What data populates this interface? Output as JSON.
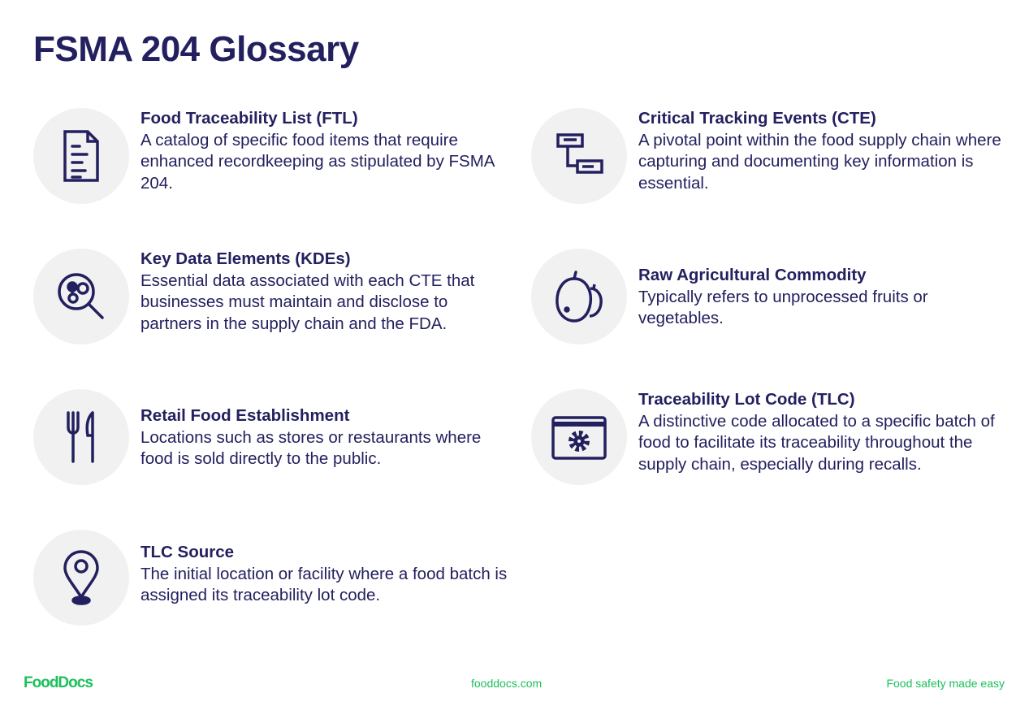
{
  "title": "FSMA 204 Glossary",
  "colors": {
    "primary": "#23205f",
    "accent": "#1bbf5b",
    "icon_background": "#f1f1f1"
  },
  "terms": [
    {
      "icon": "document-icon",
      "term": "Food Traceability List (FTL)",
      "definition": "A catalog of specific food items that require enhanced recordkeeping as stipulated by FSMA 204."
    },
    {
      "icon": "flowchart-icon",
      "term": "Critical Tracking Events (CTE)",
      "definition": "A pivotal point within the food supply chain where capturing and documenting key information is essential."
    },
    {
      "icon": "magnifier-data-icon",
      "term": "Key Data Elements (KDEs)",
      "definition": "Essential data associated with each CTE that businesses must maintain and disclose to partners in the supply chain and the FDA."
    },
    {
      "icon": "fruit-icon",
      "term": "Raw Agricultural Commodity",
      "definition": "Typically refers to unprocessed fruits or vegetables."
    },
    {
      "icon": "fork-knife-icon",
      "term": "Retail Food Establishment",
      "definition": "Locations such as stores or restaurants where food is sold directly to the public."
    },
    {
      "icon": "browser-gear-icon",
      "term": "Traceability Lot Code (TLC)",
      "definition": "A distinctive code allocated to a specific batch of food to facilitate its traceability throughout the supply chain, especially during recalls."
    },
    {
      "icon": "location-pin-icon",
      "term": "TLC Source",
      "definition": "The initial location or facility where a food batch is assigned its traceability lot code."
    }
  ],
  "footer": {
    "logo": "FoodDocs",
    "website": "fooddocs.com",
    "tagline": "Food safety made easy"
  }
}
